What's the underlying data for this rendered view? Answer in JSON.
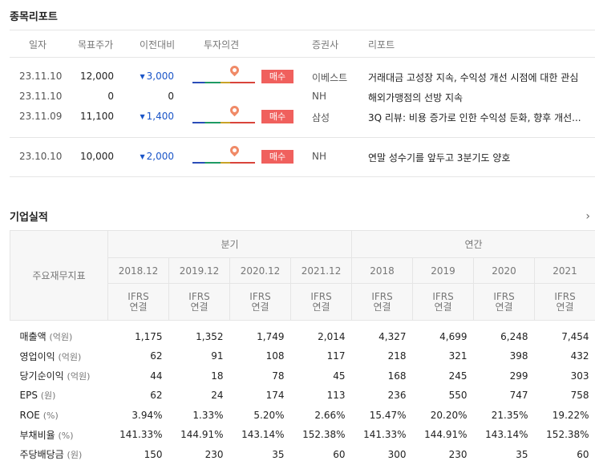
{
  "reports": {
    "title": "종목리포트",
    "headers": {
      "date": "일자",
      "target": "목표주가",
      "change": "이전대비",
      "opinion": "투자의견",
      "broker": "증권사",
      "report": "리포트"
    },
    "rows": [
      {
        "date": "23.11.10",
        "target": "12,000",
        "change": "3,000",
        "direction": "down",
        "opinion": "매수",
        "broker": "이베스트",
        "title": "거래대금 고성장 지속, 수익성 개선 시점에 대한 관심"
      },
      {
        "date": "23.11.10",
        "target": "0",
        "change": "0",
        "direction": "none",
        "opinion": "",
        "broker": "NH",
        "title": "해외가맹점의 선방 지속"
      },
      {
        "date": "23.11.09",
        "target": "11,100",
        "change": "1,400",
        "direction": "down",
        "opinion": "매수",
        "broker": "삼성",
        "title": "3Q 리뷰: 비용 증가로 인한 수익성 둔화, 향후 개선..."
      },
      {
        "date": "23.10.10",
        "target": "10,000",
        "change": "2,000",
        "direction": "down",
        "opinion": "매수",
        "broker": "NH",
        "title": "연말 성수기를 앞두고 3분기도 양호"
      }
    ]
  },
  "performance": {
    "title": "기업실적",
    "label_header": "주요재무지표",
    "group_quarter": "분기",
    "group_annual": "연간",
    "periods": [
      "2018.12",
      "2019.12",
      "2020.12",
      "2021.12",
      "2018",
      "2019",
      "2020",
      "2021"
    ],
    "ifrs_line1": "IFRS",
    "ifrs_line2": "연결",
    "rows": [
      {
        "label": "매출액",
        "unit": "(억원)",
        "values": [
          "1,175",
          "1,352",
          "1,749",
          "2,014",
          "4,327",
          "4,699",
          "6,248",
          "7,454"
        ]
      },
      {
        "label": "영업이익",
        "unit": "(억원)",
        "values": [
          "62",
          "91",
          "108",
          "117",
          "218",
          "321",
          "398",
          "432"
        ]
      },
      {
        "label": "당기순이익",
        "unit": "(억원)",
        "values": [
          "44",
          "18",
          "78",
          "45",
          "168",
          "245",
          "299",
          "303"
        ]
      },
      {
        "label": "EPS",
        "unit": "(원)",
        "values": [
          "62",
          "24",
          "174",
          "113",
          "236",
          "550",
          "747",
          "758"
        ]
      },
      {
        "label": "ROE",
        "unit": "(%)",
        "values": [
          "3.94%",
          "1.33%",
          "5.20%",
          "2.66%",
          "15.47%",
          "20.20%",
          "21.35%",
          "19.22%"
        ]
      },
      {
        "label": "부채비율",
        "unit": "(%)",
        "values": [
          "141.33%",
          "144.91%",
          "143.14%",
          "152.38%",
          "141.33%",
          "144.91%",
          "143.14%",
          "152.38%"
        ]
      },
      {
        "label": "주당배당금",
        "unit": "(원)",
        "values": [
          "150",
          "230",
          "35",
          "60",
          "300",
          "230",
          "35",
          "60"
        ]
      }
    ]
  },
  "colors": {
    "down": "#1a55c8",
    "buy_badge": "#f0605d",
    "pin": "#f08a67"
  }
}
